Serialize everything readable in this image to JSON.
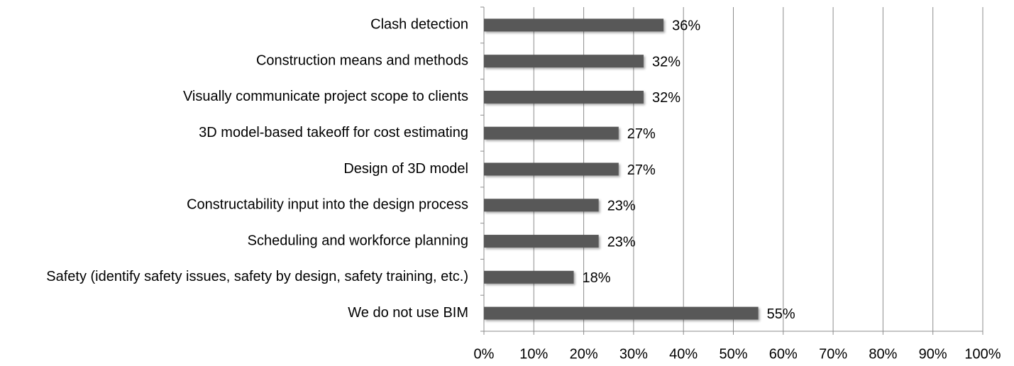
{
  "chart_data": {
    "type": "bar",
    "orientation": "horizontal",
    "categories": [
      "Clash detection",
      "Construction means and methods",
      "Visually communicate project scope to clients",
      "3D model-based takeoff for cost estimating",
      "Design of 3D model",
      "Constructability input into the design process",
      "Scheduling and workforce planning",
      "Safety (identify safety issues, safety by design, safety training, etc.)",
      "We do not use BIM"
    ],
    "values": [
      36,
      32,
      32,
      27,
      27,
      23,
      23,
      18,
      55
    ],
    "value_labels": [
      "36%",
      "32%",
      "32%",
      "27%",
      "27%",
      "23%",
      "23%",
      "18%",
      "55%"
    ],
    "color": "#595959",
    "xlim": [
      0,
      100
    ],
    "xticks": [
      {
        "value": 0,
        "label": "0%"
      },
      {
        "value": 10,
        "label": "10%"
      },
      {
        "value": 20,
        "label": "20%"
      },
      {
        "value": 30,
        "label": "30%"
      },
      {
        "value": 40,
        "label": "40%"
      },
      {
        "value": 50,
        "label": "50%"
      },
      {
        "value": 60,
        "label": "60%"
      },
      {
        "value": 70,
        "label": "70%"
      },
      {
        "value": 80,
        "label": "80%"
      },
      {
        "value": 90,
        "label": "90%"
      },
      {
        "value": 100,
        "label": "100%"
      }
    ],
    "grid": true
  }
}
